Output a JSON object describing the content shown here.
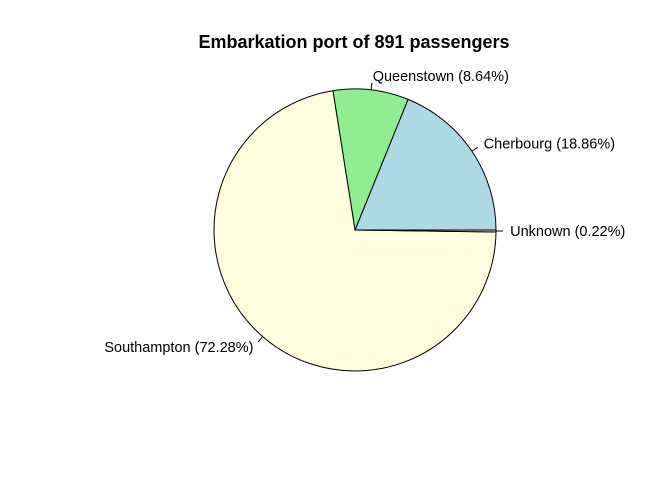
{
  "chart_data": {
    "type": "pie",
    "title": "Embarkation port of 891 passengers",
    "slices": [
      {
        "label": "Cherbourg (18.86%)",
        "value": 18.86,
        "color": "#ADD8E6"
      },
      {
        "label": "Queenstown (8.64%)",
        "value": 8.64,
        "color": "#90EE90"
      },
      {
        "label": "Southampton (72.28%)",
        "value": 72.28,
        "color": "#FFFFE0"
      },
      {
        "label": "Unknown (0.22%)",
        "value": 0.22,
        "color": "#FFC0CB"
      }
    ],
    "start_angle_deg": 0,
    "direction": "counterclockwise"
  }
}
